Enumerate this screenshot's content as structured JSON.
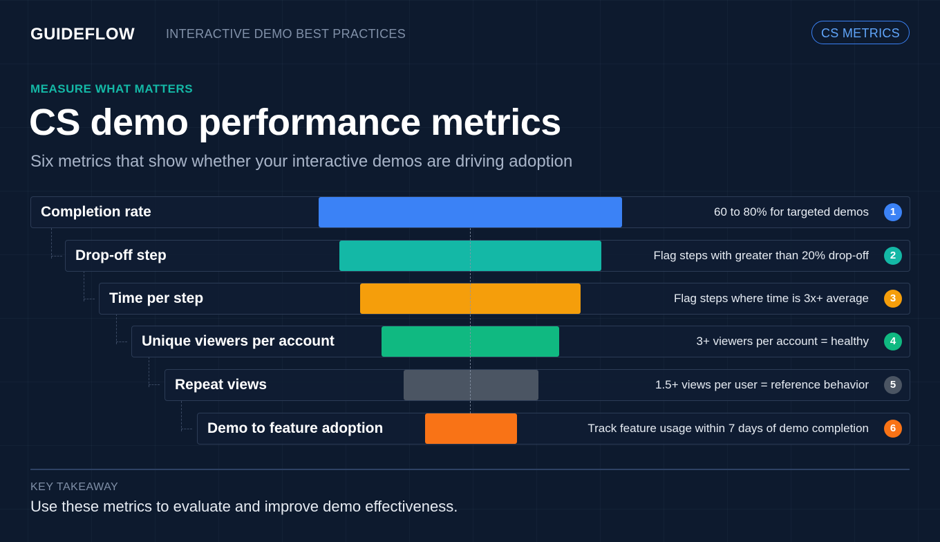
{
  "header": {
    "brand": "GUIDEFLOW",
    "subtitle": "INTERACTIVE DEMO BEST PRACTICES",
    "badge": "CS METRICS"
  },
  "hero": {
    "eyebrow": "MEASURE WHAT MATTERS",
    "title": "CS demo performance metrics",
    "subtitle": "Six metrics that show whether your interactive demos are driving adoption"
  },
  "metrics": [
    {
      "label": "Completion rate",
      "description": "60 to 80% for targeted demos",
      "number": "1",
      "color": "#3b82f6"
    },
    {
      "label": "Drop-off step",
      "description": "Flag steps with greater than 20% drop-off",
      "number": "2",
      "color": "#14b8a6"
    },
    {
      "label": "Time per step",
      "description": "Flag steps where time is 3x+ average",
      "number": "3",
      "color": "#f59e0b"
    },
    {
      "label": "Unique viewers per account",
      "description": "3+ viewers per account = healthy",
      "number": "4",
      "color": "#10b981"
    },
    {
      "label": "Repeat views",
      "description": "1.5+ views per user = reference behavior",
      "number": "5",
      "color": "#4b5563"
    },
    {
      "label": "Demo to feature adoption",
      "description": "Track feature usage within 7 days of demo completion",
      "number": "6",
      "color": "#f97316"
    }
  ],
  "takeaway": {
    "label": "KEY TAKEAWAY",
    "text": "Use these metrics to evaluate and improve demo effectiveness."
  }
}
